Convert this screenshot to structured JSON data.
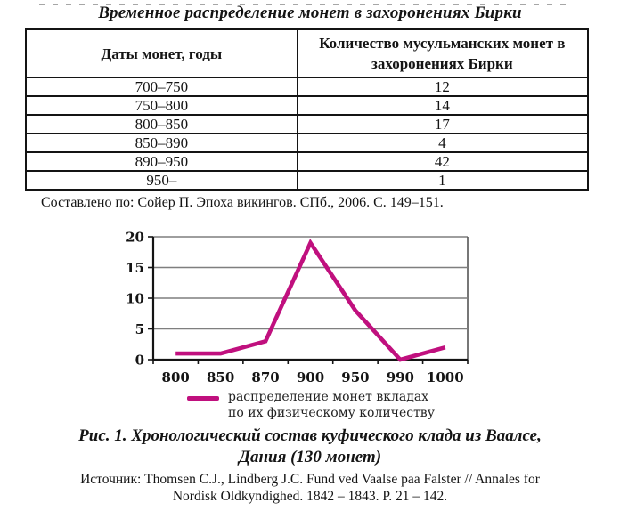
{
  "page": {
    "title": "Временное распределение монет в захоронениях Бирки",
    "table_note": "Составлено по: Сойер П. Эпоха викингов. СПб., 2006. С. 149–151."
  },
  "table": {
    "columns": [
      "Даты монет, годы",
      "Количество мусульманских монет в захоронениях Бирки"
    ],
    "rows": [
      [
        "700–750",
        "12"
      ],
      [
        "750–800",
        "14"
      ],
      [
        "800–850",
        "17"
      ],
      [
        "850–890",
        "4"
      ],
      [
        "890–950",
        "42"
      ],
      [
        "950–",
        "1"
      ]
    ]
  },
  "chart_data": {
    "type": "line",
    "title": "",
    "xlabel": "",
    "ylabel": "",
    "categories": [
      "800",
      "850",
      "870",
      "900",
      "950",
      "990",
      "1000"
    ],
    "series": [
      {
        "name": "распределение монет вкладах по их физическому количеству",
        "values": [
          1,
          1,
          3,
          19,
          8,
          0,
          2
        ]
      }
    ],
    "ylim": [
      0,
      20
    ],
    "yticks": [
      0,
      5,
      10,
      15,
      20
    ],
    "grid": true,
    "legend_position": "bottom",
    "legend_lines": [
      "распределение монет вкладах",
      "по их физическому количеству"
    ],
    "line_color": "#c0107e",
    "gridline_color": "#7f7f7f",
    "frame_color": "#555555",
    "axis_color": "#141414"
  },
  "figure": {
    "caption_line1": "Рис. 1. Хронологический состав куфического клада из Ваалсе,",
    "caption_line2": "Дания (130 монет)",
    "source_line1": "Источник: Thomsen C.J., Lindberg J.C. Fund ved Vaalse paa Falster // Annales for",
    "source_line2": "Nordisk Oldkyndighed. 1842 – 1843. P. 21 – 142."
  }
}
